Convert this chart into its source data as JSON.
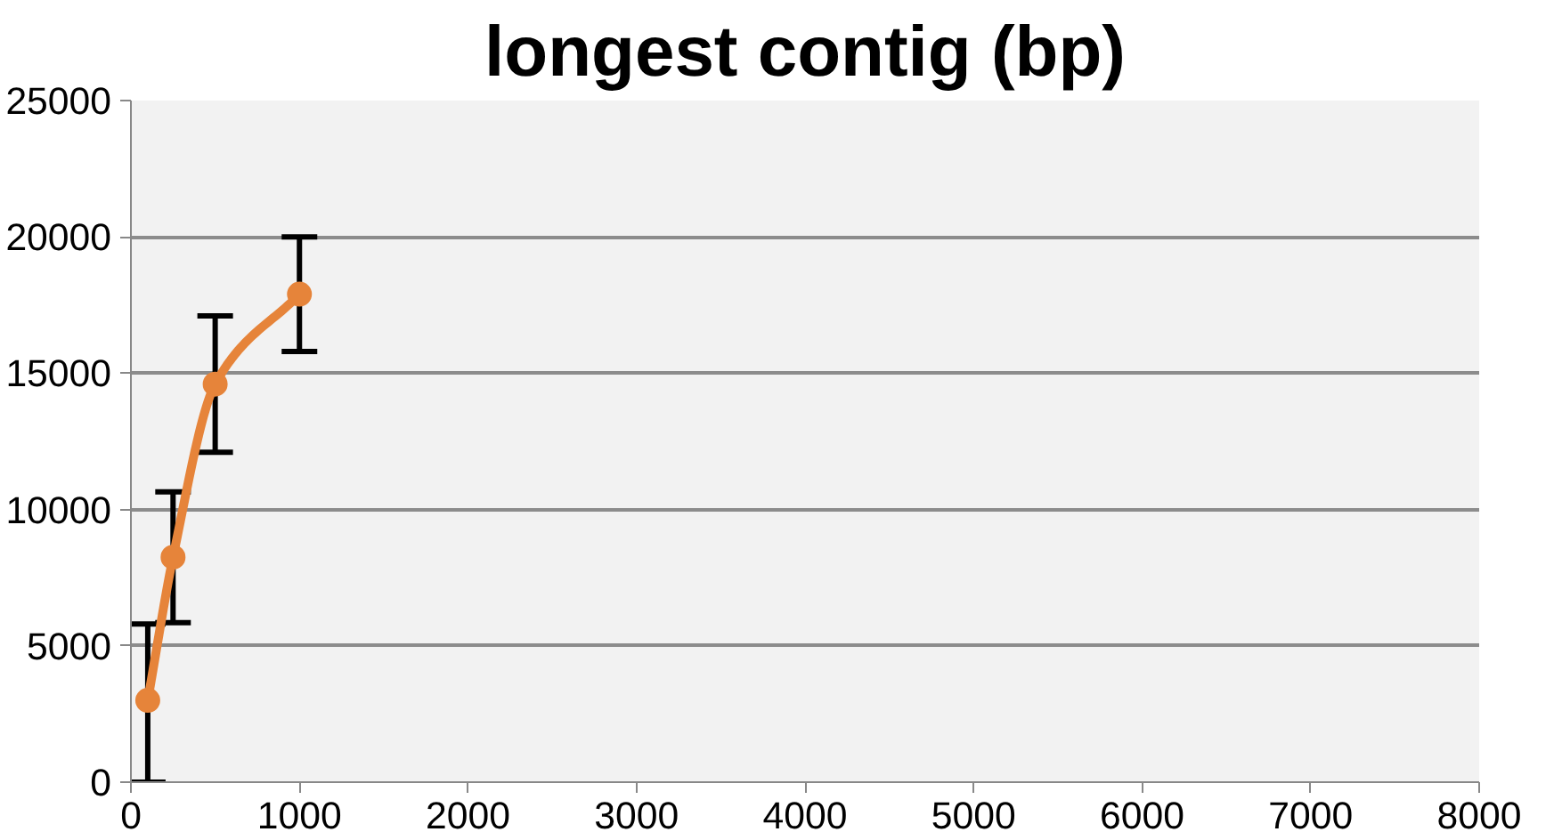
{
  "chart_data": {
    "type": "line",
    "title": "longest contig (bp)",
    "x": [
      100,
      250,
      500,
      1000
    ],
    "series": [
      {
        "color": "#e6843a",
        "values": [
          3000,
          8250,
          14600,
          17900
        ],
        "errors": [
          [
            0,
            5800
          ],
          2400,
          2500,
          2100
        ]
      }
    ],
    "xlim": [
      0,
      8000
    ],
    "xticks": [
      0,
      1000,
      2000,
      3000,
      4000,
      5000,
      6000,
      7000,
      8000
    ],
    "ylim": [
      0,
      25000
    ],
    "yticks": [
      0,
      5000,
      10000,
      15000,
      20000,
      25000
    ],
    "grid": "y",
    "marker": "circle",
    "line_style": "solid"
  }
}
